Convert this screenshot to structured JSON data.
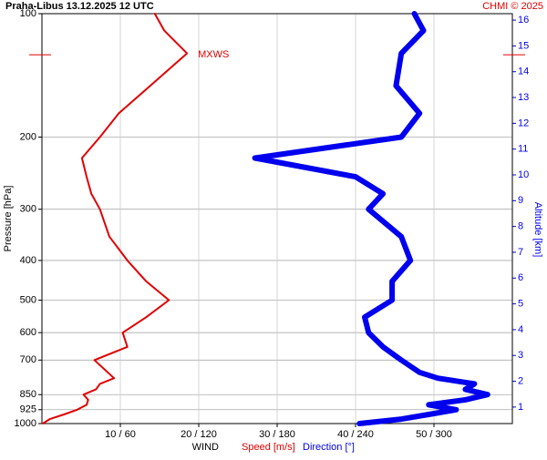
{
  "chart_data": {
    "type": "line",
    "title": "Praha-Libus   13.12.2025 12 UTC",
    "credit": "CHMI © 2025",
    "x_label": "WIND",
    "y_label": "Pressure [hPa]",
    "y2_label": "Altitude [km]",
    "y": [
      1000,
      975,
      950,
      925,
      900,
      875,
      850,
      825,
      800,
      775,
      750,
      700,
      650,
      600,
      550,
      500,
      450,
      400,
      350,
      300,
      275,
      250,
      225,
      200,
      175,
      150,
      125,
      110,
      100
    ],
    "series": [
      {
        "name": "Speed [m/s]",
        "color": "#e00000",
        "values": [
          0.1,
          1,
          2.8,
          4.5,
          5.7,
          5.9,
          5.3,
          6.9,
          7.4,
          9.2,
          8.4,
          6.7,
          10.9,
          10.3,
          13.3,
          16.2,
          13.3,
          10.9,
          8.6,
          7.4,
          6.3,
          5.7,
          5.1,
          7.4,
          9.8,
          13.8,
          18.5,
          15.6,
          14.4
        ]
      },
      {
        "name": "Direction [°]",
        "color": "#0000ee",
        "axis": "x2",
        "values": [
          243,
          275,
          296,
          317,
          296,
          324,
          341,
          324,
          331,
          303,
          289,
          275,
          261,
          250,
          247,
          268,
          268,
          282,
          275,
          250,
          261,
          240,
          163,
          275,
          289,
          271,
          275,
          292,
          285
        ]
      }
    ],
    "xlim": [
      0,
      60
    ],
    "x2lim": [
      0,
      360
    ],
    "xticks": [
      {
        "value": 10,
        "label": "10 / 60"
      },
      {
        "value": 20,
        "label": "20 / 120"
      },
      {
        "value": 30,
        "label": "30 / 180"
      },
      {
        "value": 40,
        "label": "40 / 240"
      },
      {
        "value": 50,
        "label": "50 / 300"
      }
    ],
    "ylim": [
      100,
      1000
    ],
    "log_y": true,
    "yticks": [
      100,
      200,
      300,
      400,
      500,
      600,
      700,
      850,
      925,
      1000
    ],
    "y2lim": [
      0.36,
      16.25
    ],
    "y2ticks": [
      1,
      2,
      3,
      4,
      5,
      6,
      7,
      8,
      9,
      10,
      11,
      12,
      13,
      14,
      15,
      16
    ],
    "annotations": [
      {
        "text": "MXWS",
        "y": 126
      }
    ],
    "grid": true
  }
}
